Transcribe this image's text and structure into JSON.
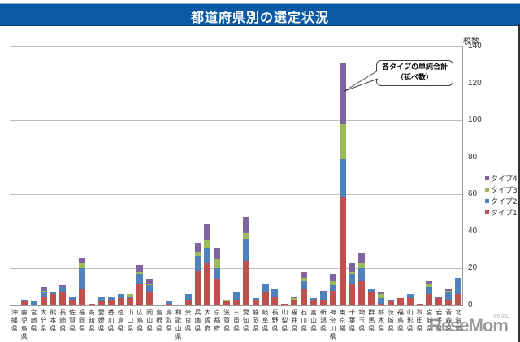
{
  "header": {
    "title": "都道府県別の選定状況"
  },
  "chart_data": {
    "type": "bar",
    "stacked": true,
    "title": "都道府県別の選定状況",
    "xlabel": "",
    "ylabel": "校数",
    "ylim": [
      0,
      140
    ],
    "yticks": [
      0,
      20,
      40,
      60,
      80,
      100,
      120,
      140
    ],
    "grid": true,
    "legend_position": "right",
    "annotation": "各タイプの単純合計（延べ数）",
    "categories": [
      "沖縄県",
      "鹿児島県",
      "宮崎県",
      "大分県",
      "熊本県",
      "長崎県",
      "佐賀県",
      "福岡県",
      "高知県",
      "愛媛県",
      "香川県",
      "徳島県",
      "山口県",
      "広島県",
      "岡山県",
      "島根県",
      "鳥取県",
      "和歌山県",
      "奈良県",
      "兵庫県",
      "大阪府",
      "京都府",
      "滋賀県",
      "三重県",
      "愛知県",
      "静岡県",
      "岐阜県",
      "長野県",
      "山梨県",
      "福井県",
      "石川県",
      "富山県",
      "新潟県",
      "神奈川県",
      "東京都",
      "千葉県",
      "埼玉県",
      "群馬県",
      "栃木県",
      "茨城県",
      "福島県",
      "山形県",
      "秋田県",
      "宮城県",
      "岩手県",
      "青森県",
      "北海道"
    ],
    "series": [
      {
        "name": "タイプ1",
        "color": "#c0504d",
        "values": [
          0,
          2,
          0,
          5,
          6,
          7,
          3,
          9,
          1,
          2,
          3,
          4,
          4,
          12,
          7,
          0,
          1,
          0,
          3,
          19,
          23,
          14,
          2,
          3,
          24,
          3,
          7,
          5,
          1,
          3,
          9,
          3,
          3,
          8,
          59,
          12,
          13,
          7,
          1,
          2,
          4,
          4,
          1,
          6,
          4,
          3,
          6
        ]
      },
      {
        "name": "タイプ2",
        "color": "#4f81bd",
        "values": [
          0,
          1,
          2,
          2,
          1,
          3,
          2,
          11,
          0,
          3,
          2,
          2,
          1,
          5,
          4,
          0,
          1,
          0,
          3,
          8,
          8,
          6,
          0,
          4,
          12,
          1,
          5,
          4,
          0,
          0,
          4,
          1,
          4,
          3,
          20,
          5,
          7,
          2,
          3,
          1,
          0,
          2,
          0,
          4,
          1,
          4,
          9
        ]
      },
      {
        "name": "タイプ3",
        "color": "#9bbb59",
        "values": [
          0,
          0,
          0,
          1,
          0,
          0,
          0,
          3,
          0,
          0,
          0,
          0,
          1,
          1,
          1,
          0,
          0,
          0,
          0,
          2,
          4,
          5,
          1,
          0,
          3,
          0,
          0,
          0,
          0,
          1,
          2,
          0,
          0,
          2,
          19,
          1,
          3,
          0,
          2,
          0,
          0,
          0,
          0,
          2,
          0,
          1,
          0
        ]
      },
      {
        "name": "タイプ4",
        "color": "#8064a2",
        "values": [
          0,
          0,
          0,
          2,
          0,
          1,
          0,
          3,
          0,
          0,
          0,
          0,
          0,
          4,
          2,
          0,
          0,
          0,
          0,
          5,
          9,
          6,
          0,
          0,
          9,
          0,
          0,
          0,
          0,
          1,
          3,
          0,
          1,
          4,
          33,
          5,
          5,
          0,
          1,
          0,
          0,
          0,
          0,
          1,
          0,
          1,
          0
        ]
      }
    ]
  },
  "legend": {
    "items": [
      {
        "label": "タイプ4",
        "color": "#8064a2"
      },
      {
        "label": "タイプ3",
        "color": "#9bbb59"
      },
      {
        "label": "タイプ2",
        "color": "#4f81bd"
      },
      {
        "label": "タイプ1",
        "color": "#c0504d"
      }
    ]
  },
  "axis": {
    "unit": "校数",
    "ticks": [
      "140",
      "120",
      "100",
      "80",
      "60",
      "40",
      "20",
      "0"
    ]
  },
  "callout": {
    "line1": "各タイプの単純合計",
    "line2": "（延べ数）"
  },
  "watermark": {
    "logo": "ReseMom",
    "sub": "リセマム"
  }
}
